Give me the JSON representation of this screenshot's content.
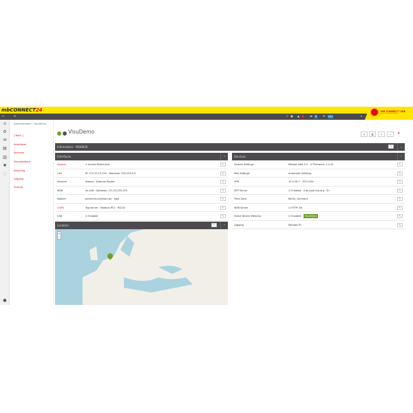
{
  "app": {
    "logo": "mbCONNECT",
    "logo_suffix": "24",
    "brand": "MB CONNECT LINE",
    "brand_sub": "remote maintenance solutions"
  },
  "toolbar": {
    "badges": [
      "2",
      "0",
      "10+"
    ],
    "colors": {
      "accent": "#e30613",
      "yellow": "#ffe500",
      "dark": "#4d4a4d",
      "green": "#6aa121"
    }
  },
  "breadcrumb": [
    "Administration",
    "VisuDemo"
  ],
  "menu": [
    "[ Back ]",
    "Interfaces",
    "Services",
    "Visualizations",
    "Alarming",
    "Logging",
    "Scaling"
  ],
  "device": {
    "title": "VisuDemo",
    "status": "online"
  },
  "info": {
    "title": "Information - MDH830"
  },
  "interfaces": {
    "title": "Interfaces",
    "rows": [
      {
        "key": "System",
        "value": "✔ Access Restricted",
        "red": true
      },
      {
        "key": "LAN",
        "value": "IP: 172.25.13.253  · Netmask: 255.255.0.0",
        "red": true
      },
      {
        "key": "Internet",
        "value": "Always  · External Router"
      },
      {
        "key": "WAN",
        "value": "as LAN  · Gateway: 172.25.255.253"
      },
      {
        "key": "Modem",
        "value": "pinternet.interkom.de  · egal"
      },
      {
        "key": "COM1",
        "value": "Tag Server  · Modbus RTU  · RS232",
        "red": true
      },
      {
        "key": "USB",
        "value": "☑ Enabled"
      }
    ]
  },
  "services": {
    "title": "Services",
    "rows": [
      {
        "key": "System Settings",
        "value": "Reboot after 0 h  · ☑ Firmware: 2.4.15"
      },
      {
        "key": "Mail Settings",
        "value": "Automatic Settings"
      },
      {
        "key": "VPN",
        "value": "10.0.26.7  · TCP:1194  ·"
      },
      {
        "key": "NTP Server",
        "value": "☑ Enabled  · 0.de.pool.ntp.org  · 2h"
      },
      {
        "key": "Time Zone",
        "value": "Berlin, Germany"
      },
      {
        "key": "WEB Server",
        "value": "☑ HTTP: 80"
      },
      {
        "key": "Direct Device Web2Go",
        "value": "☑ Enabled  ·",
        "tag": "VisuDemo"
      },
      {
        "key": "Logging",
        "value": "Remote IP:"
      }
    ]
  },
  "location": {
    "title": "Location",
    "zoom_in": "+",
    "zoom_out": "−"
  }
}
